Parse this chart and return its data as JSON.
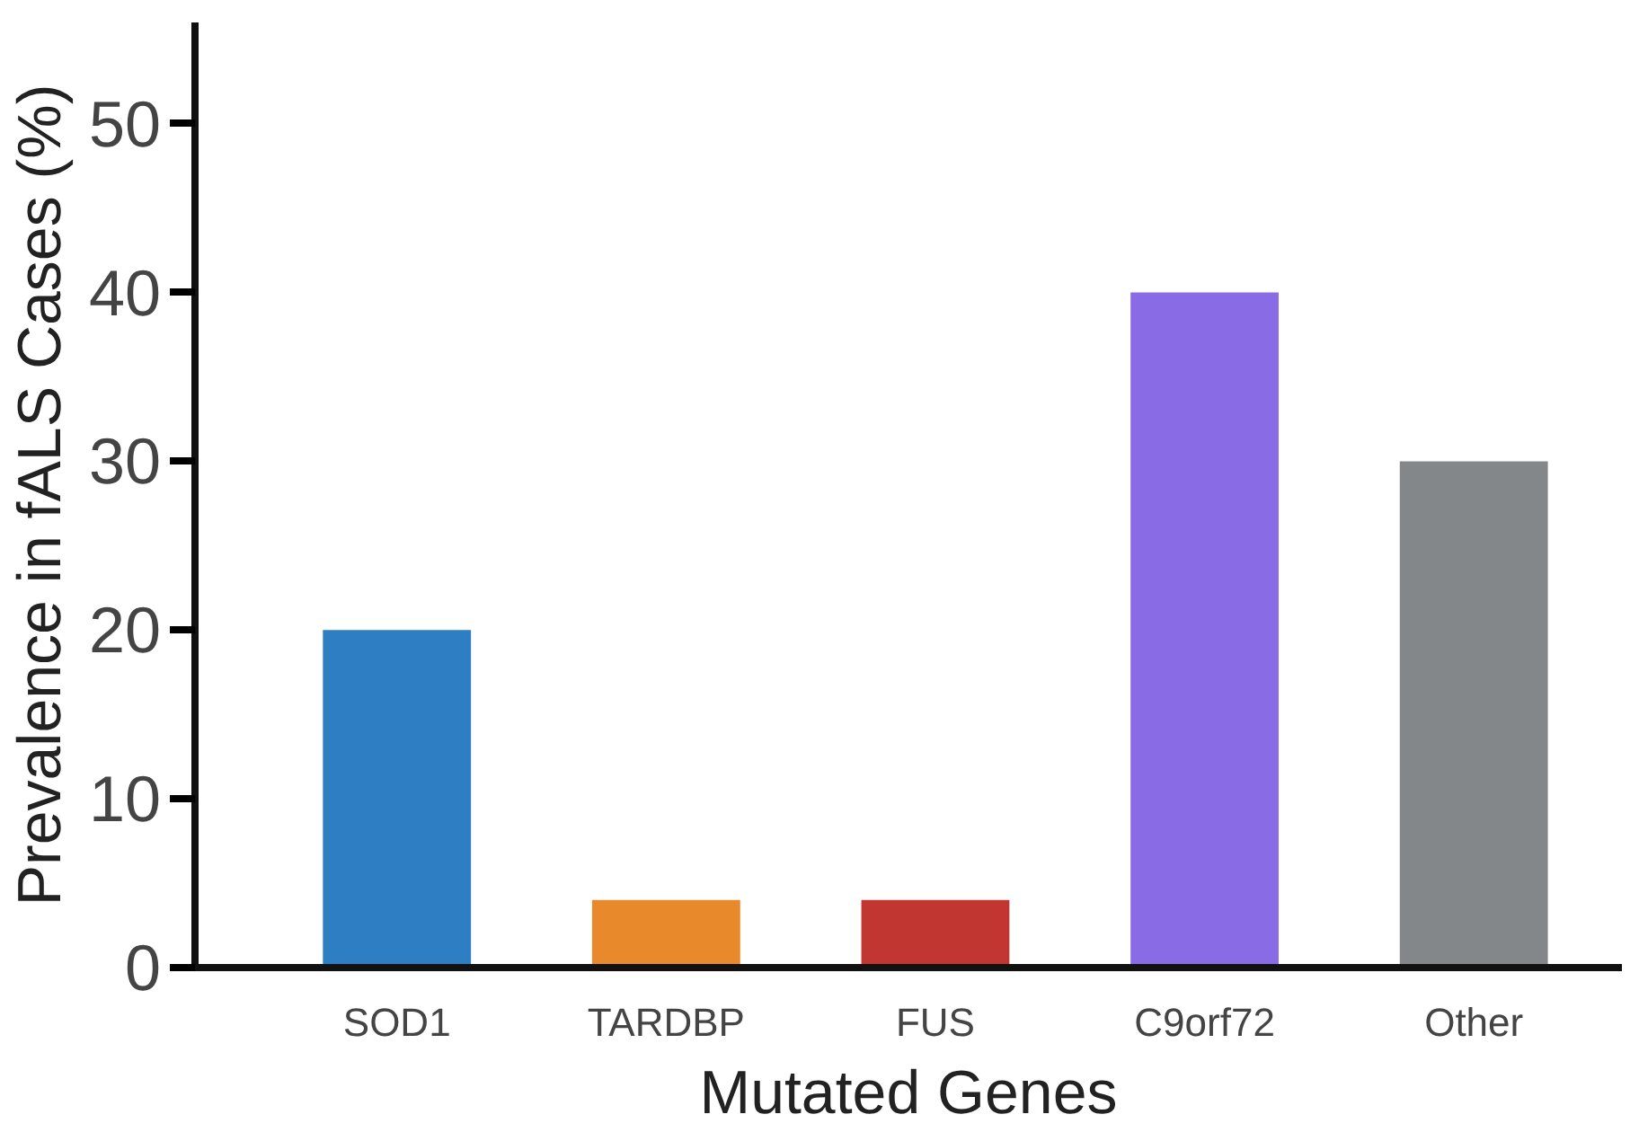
{
  "chart_data": {
    "type": "bar",
    "xlabel": "Mutated Genes",
    "ylabel": "Prevalence in fALS Cases (%)",
    "categories": [
      "SOD1",
      "TARDBP",
      "FUS",
      "C9orf72",
      "Other"
    ],
    "values": [
      20,
      4,
      4,
      40,
      30
    ],
    "colors": [
      "#2e7ec4",
      "#e8892c",
      "#c23631",
      "#8a6be6",
      "#838789"
    ],
    "ylim": [
      0,
      56
    ],
    "yticks": [
      0,
      10,
      20,
      30,
      40,
      50
    ],
    "grid": false
  }
}
